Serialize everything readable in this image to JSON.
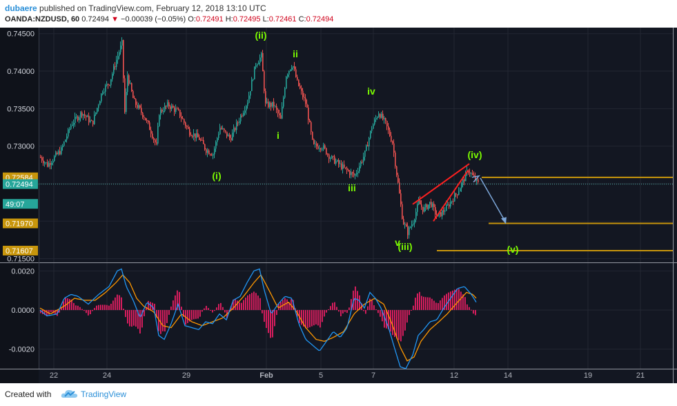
{
  "header": {
    "author": "dubaere",
    "published_text": "published on TradingView.com, February 12, 2018 13:10 UTC",
    "symbol": "OANDA:NZDUSD, 60",
    "last": "0.72494",
    "arrow": "▼",
    "change": "−0.00039 (−0.05%)",
    "o_label": "O:",
    "o_value": "0.72491",
    "h_label": "H:",
    "h_value": "0.72495",
    "l_label": "L:",
    "l_value": "0.72461",
    "c_label": "C:",
    "c_value": "0.72494"
  },
  "footer": {
    "created_with": "Created with",
    "brand": "TradingView"
  },
  "colors": {
    "background": "#131722",
    "grid": "#232733",
    "up": "#26a69a",
    "down": "#ef5350",
    "wave_label": "#7cfc00",
    "level_line": "#c8960c",
    "wedge": "#ff2020",
    "projection": "#7da7d9",
    "macd": "#2196f3",
    "signal": "#ff9800",
    "histogram": "#e91e63",
    "price_line": "#4fb0a8"
  },
  "chart_data": [
    {
      "type": "candlestick",
      "instrument": "OANDA:NZDUSD",
      "timeframe": "60",
      "x_tick_labels": [
        "22",
        "24",
        "29",
        "Feb",
        "5",
        "7",
        "12",
        "14",
        "19",
        "21"
      ],
      "y_tick_labels": [
        "0.74500",
        "0.74000",
        "0.73500",
        "0.73000",
        "0.71500"
      ],
      "ylim": [
        0.7145,
        0.7458
      ],
      "price_badges": [
        {
          "label": "0.72584",
          "value": 0.72584,
          "color": "#c8960c"
        },
        {
          "label": "0.72494",
          "value": 0.72494,
          "color": "#26a69a"
        },
        {
          "label": "49:07",
          "value": 0.7223,
          "color": "#26a69a"
        },
        {
          "label": "0.71970",
          "value": 0.7197,
          "color": "#c8960c"
        },
        {
          "label": "0.71607",
          "value": 0.71607,
          "color": "#c8960c"
        }
      ],
      "path": [
        [
          0,
          0.7285
        ],
        [
          10,
          0.7275
        ],
        [
          30,
          0.7295
        ],
        [
          45,
          0.733
        ],
        [
          60,
          0.7345
        ],
        [
          75,
          0.733
        ],
        [
          90,
          0.7375
        ],
        [
          100,
          0.7385
        ],
        [
          110,
          0.7415
        ],
        [
          118,
          0.7437
        ],
        [
          122,
          0.7345
        ],
        [
          126,
          0.7395
        ],
        [
          135,
          0.736
        ],
        [
          150,
          0.734
        ],
        [
          160,
          0.732
        ],
        [
          168,
          0.73
        ],
        [
          172,
          0.7345
        ],
        [
          185,
          0.7355
        ],
        [
          200,
          0.7345
        ],
        [
          215,
          0.732
        ],
        [
          230,
          0.731
        ],
        [
          240,
          0.7295
        ],
        [
          250,
          0.729
        ],
        [
          260,
          0.7325
        ],
        [
          275,
          0.731
        ],
        [
          285,
          0.733
        ],
        [
          300,
          0.736
        ],
        [
          312,
          0.741
        ],
        [
          320,
          0.742
        ],
        [
          326,
          0.7355
        ],
        [
          338,
          0.7355
        ],
        [
          348,
          0.7335
        ],
        [
          356,
          0.7395
        ],
        [
          365,
          0.741
        ],
        [
          372,
          0.7385
        ],
        [
          385,
          0.7355
        ],
        [
          395,
          0.73
        ],
        [
          408,
          0.73
        ],
        [
          420,
          0.7285
        ],
        [
          440,
          0.727
        ],
        [
          455,
          0.726
        ],
        [
          470,
          0.729
        ],
        [
          480,
          0.7325
        ],
        [
          490,
          0.7345
        ],
        [
          500,
          0.733
        ],
        [
          510,
          0.7305
        ],
        [
          518,
          0.725
        ],
        [
          525,
          0.72
        ],
        [
          532,
          0.7185
        ],
        [
          540,
          0.72
        ],
        [
          548,
          0.7225
        ],
        [
          555,
          0.7215
        ],
        [
          565,
          0.7225
        ],
        [
          575,
          0.7205
        ],
        [
          590,
          0.722
        ],
        [
          605,
          0.724
        ],
        [
          620,
          0.7268
        ],
        [
          630,
          0.7255
        ],
        [
          635,
          0.7248
        ]
      ],
      "wave_labels": [
        {
          "text": "(ii)",
          "x_index": 320,
          "price": 0.74435
        },
        {
          "text": "ii",
          "x_index": 370,
          "price": 0.74185
        },
        {
          "text": "iv",
          "x_index": 480,
          "price": 0.73685
        },
        {
          "text": "i",
          "x_index": 345,
          "price": 0.731
        },
        {
          "text": "(i)",
          "x_index": 256,
          "price": 0.7256
        },
        {
          "text": "(iv)",
          "x_index": 630,
          "price": 0.7284
        },
        {
          "text": "iii",
          "x_index": 452,
          "price": 0.724
        },
        {
          "text": "v",
          "x_index": 518,
          "price": 0.7167
        },
        {
          "text": "(iii)",
          "x_index": 529,
          "price": 0.71615
        },
        {
          "text": "(v)",
          "x_index": 685,
          "price": 0.7158
        }
      ],
      "levels": [
        {
          "value": 0.72584,
          "from_index": 640
        },
        {
          "value": 0.7197,
          "from_index": 650
        },
        {
          "value": 0.71607,
          "from_index": 575
        }
      ],
      "wedge": {
        "upper": [
          [
            540,
            0.72225
          ],
          [
            622,
            0.72765
          ]
        ],
        "lower": [
          [
            570,
            0.72
          ],
          [
            620,
            0.72675
          ]
        ]
      },
      "projection": [
        [
          638,
          0.72575
        ],
        [
          675,
          0.7198
        ]
      ]
    },
    {
      "type": "line",
      "indicator": "MACD",
      "y_tick_labels": [
        "0.0020",
        "0.0000",
        "-0.0020"
      ],
      "ylim": [
        -0.003,
        0.0024
      ],
      "series": [
        {
          "values": [
            [
              0,
              0.0
            ],
            [
              10,
              -0.0003
            ],
            [
              25,
              -0.0002
            ],
            [
              35,
              0.0006
            ],
            [
              45,
              0.0008
            ],
            [
              55,
              0.0007
            ],
            [
              70,
              0.0003
            ],
            [
              85,
              0.0008
            ],
            [
              100,
              0.0012
            ],
            [
              112,
              0.002
            ],
            [
              118,
              0.0021
            ],
            [
              125,
              0.0012
            ],
            [
              135,
              0.0005
            ],
            [
              145,
              -0.0004
            ],
            [
              155,
              0.0004
            ],
            [
              165,
              0.0001
            ],
            [
              172,
              -0.0013
            ],
            [
              180,
              -0.0015
            ],
            [
              190,
              -0.0007
            ],
            [
              200,
              0.0003
            ],
            [
              210,
              -0.0008
            ],
            [
              220,
              -0.0009
            ],
            [
              230,
              -0.001
            ],
            [
              240,
              -0.0006
            ],
            [
              250,
              -0.0007
            ],
            [
              260,
              -0.0002
            ],
            [
              270,
              -0.0005
            ],
            [
              280,
              0.0005
            ],
            [
              290,
              0.0007
            ],
            [
              300,
              0.0014
            ],
            [
              310,
              0.002
            ],
            [
              318,
              0.0021
            ],
            [
              325,
              0.001
            ],
            [
              335,
              -0.0002
            ],
            [
              345,
              0.0003
            ],
            [
              355,
              0.0007
            ],
            [
              365,
              0.0006
            ],
            [
              375,
              -0.0007
            ],
            [
              385,
              -0.0015
            ],
            [
              395,
              -0.0018
            ],
            [
              405,
              -0.0021
            ],
            [
              415,
              -0.0016
            ],
            [
              425,
              -0.0011
            ],
            [
              435,
              -0.0014
            ],
            [
              445,
              -0.0009
            ],
            [
              455,
              0.0006
            ],
            [
              462,
              0.0005
            ],
            [
              470,
              0.0001
            ],
            [
              478,
              0.0009
            ],
            [
              486,
              0.0006
            ],
            [
              494,
              0.0001
            ],
            [
              505,
              -0.0009
            ],
            [
              515,
              -0.0021
            ],
            [
              522,
              -0.0029
            ],
            [
              530,
              -0.003
            ],
            [
              540,
              -0.0023
            ],
            [
              548,
              -0.0013
            ],
            [
              556,
              -0.001
            ],
            [
              565,
              -0.0006
            ],
            [
              575,
              -0.0005
            ],
            [
              585,
              0.0001
            ],
            [
              595,
              0.0006
            ],
            [
              605,
              0.0011
            ],
            [
              615,
              0.0012
            ],
            [
              625,
              0.0008
            ],
            [
              632,
              0.0004
            ]
          ]
        },
        {
          "values": [
            [
              0,
              0.0001
            ],
            [
              15,
              -0.0002
            ],
            [
              35,
              0.0002
            ],
            [
              50,
              0.0006
            ],
            [
              65,
              0.0005
            ],
            [
              80,
              0.0005
            ],
            [
              95,
              0.0009
            ],
            [
              110,
              0.0014
            ],
            [
              120,
              0.0018
            ],
            [
              130,
              0.0014
            ],
            [
              140,
              0.0006
            ],
            [
              150,
              0.0002
            ],
            [
              165,
              -0.0001
            ],
            [
              178,
              -0.0008
            ],
            [
              190,
              -0.0009
            ],
            [
              205,
              -0.0002
            ],
            [
              220,
              -0.0006
            ],
            [
              235,
              -0.0008
            ],
            [
              250,
              -0.0006
            ],
            [
              265,
              -0.0004
            ],
            [
              280,
              0.0001
            ],
            [
              295,
              0.0007
            ],
            [
              310,
              0.0014
            ],
            [
              320,
              0.0018
            ],
            [
              332,
              0.001
            ],
            [
              345,
              0.0001
            ],
            [
              360,
              0.0004
            ],
            [
              372,
              -0.0001
            ],
            [
              385,
              -0.0009
            ],
            [
              400,
              -0.0015
            ],
            [
              412,
              -0.0016
            ],
            [
              425,
              -0.0014
            ],
            [
              440,
              -0.0011
            ],
            [
              455,
              -0.0002
            ],
            [
              470,
              0.0003
            ],
            [
              485,
              0.0006
            ],
            [
              498,
              0.0003
            ],
            [
              510,
              -0.0007
            ],
            [
              522,
              -0.0019
            ],
            [
              532,
              -0.0026
            ],
            [
              542,
              -0.0024
            ],
            [
              552,
              -0.0016
            ],
            [
              565,
              -0.001
            ],
            [
              578,
              -0.0006
            ],
            [
              590,
              -0.0002
            ],
            [
              605,
              0.0004
            ],
            [
              618,
              0.0009
            ],
            [
              627,
              0.0008
            ],
            [
              632,
              0.0006
            ]
          ]
        }
      ],
      "histogram_sign_changes": "alternating"
    }
  ]
}
